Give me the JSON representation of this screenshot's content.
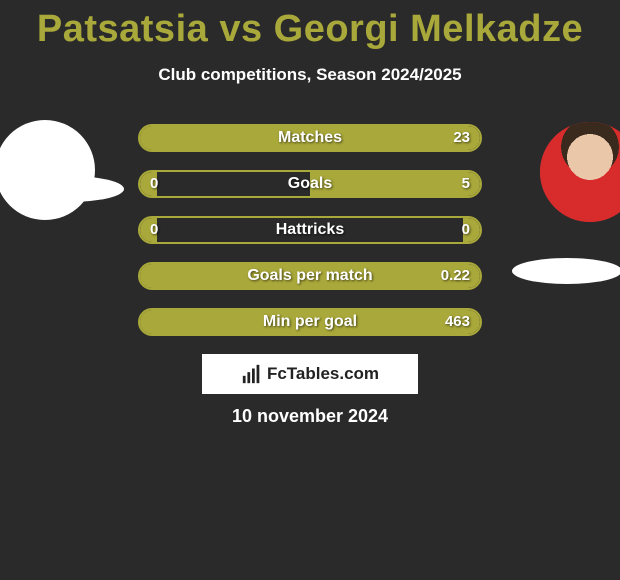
{
  "title": "Patsatsia vs Georgi Melkadze",
  "subtitle": "Club competitions, Season 2024/2025",
  "date_text": "10 november 2024",
  "logo_text": "FcTables.com",
  "accent_color": "#a9a83a",
  "background_color": "#2a2a2a",
  "text_color": "#ffffff",
  "players": {
    "left": {
      "name": "Patsatsia",
      "has_photo": false
    },
    "right": {
      "name": "Georgi Melkadze",
      "has_photo": true,
      "shirt_color": "#d82c2c"
    }
  },
  "bars": [
    {
      "label": "Matches",
      "left_value": "",
      "right_value": "23",
      "left_fill_pct": 0,
      "right_fill_pct": 100
    },
    {
      "label": "Goals",
      "left_value": "0",
      "right_value": "5",
      "left_fill_pct": 5,
      "right_fill_pct": 50
    },
    {
      "label": "Hattricks",
      "left_value": "0",
      "right_value": "0",
      "left_fill_pct": 5,
      "right_fill_pct": 5
    },
    {
      "label": "Goals per match",
      "left_value": "",
      "right_value": "0.22",
      "left_fill_pct": 0,
      "right_fill_pct": 100
    },
    {
      "label": "Min per goal",
      "left_value": "",
      "right_value": "463",
      "left_fill_pct": 0,
      "right_fill_pct": 100
    }
  ]
}
